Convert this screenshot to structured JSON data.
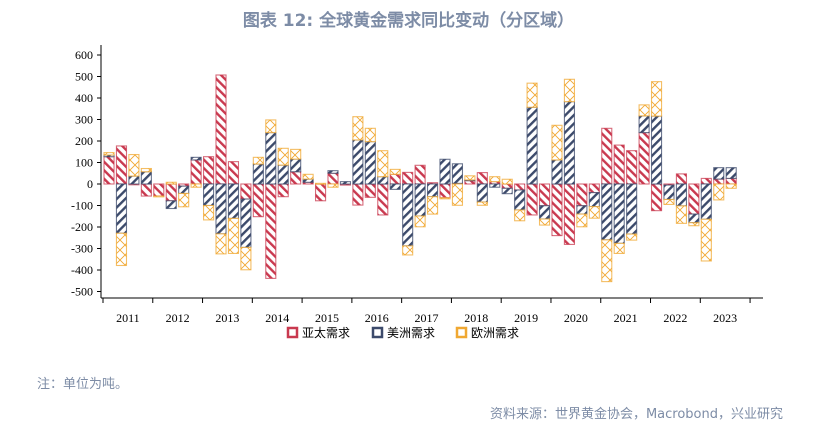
{
  "title": "图表 12: 全球黄金需求同比变动（分区域）",
  "note": "注：单位为吨。",
  "source": "资料来源：世界黄金协会，Macrobond，兴业研究",
  "chart_data": {
    "type": "bar",
    "stacked": true,
    "title": "图表 12: 全球黄金需求同比变动（分区域）",
    "xlabel": "",
    "ylabel": "",
    "ylim": [
      -500,
      600
    ],
    "yticks": [
      600,
      500,
      400,
      300,
      200,
      100,
      0,
      -100,
      -200,
      -300,
      -400,
      -500
    ],
    "year_labels": [
      "2011",
      "2012",
      "2013",
      "2014",
      "2015",
      "2016",
      "2017",
      "2018",
      "2019",
      "2020",
      "2021",
      "2022",
      "2023"
    ],
    "categories": [
      "2011Q1",
      "2011Q2",
      "2011Q3",
      "2011Q4",
      "2012Q1",
      "2012Q2",
      "2012Q3",
      "2012Q4",
      "2013Q1",
      "2013Q2",
      "2013Q3",
      "2013Q4",
      "2014Q1",
      "2014Q2",
      "2014Q3",
      "2014Q4",
      "2015Q1",
      "2015Q2",
      "2015Q3",
      "2015Q4",
      "2016Q1",
      "2016Q2",
      "2016Q3",
      "2016Q4",
      "2017Q1",
      "2017Q2",
      "2017Q3",
      "2017Q4",
      "2018Q1",
      "2018Q2",
      "2018Q3",
      "2018Q4",
      "2019Q1",
      "2019Q2",
      "2019Q3",
      "2019Q4",
      "2020Q1",
      "2020Q2",
      "2020Q3",
      "2020Q4",
      "2021Q1",
      "2021Q2",
      "2021Q3",
      "2021Q4",
      "2022Q1",
      "2022Q2",
      "2022Q3",
      "2022Q4",
      "2023Q1",
      "2023Q2",
      "2023Q3"
    ],
    "legend_position": "bottom",
    "grid": false,
    "series": [
      {
        "name": "亚太需求",
        "color": "#c9394f",
        "pattern": "diagonal-back",
        "values": [
          127,
          177,
          -3,
          -56,
          -56,
          -78,
          -10,
          112,
          127,
          507,
          104,
          -70,
          -152,
          -439,
          -59,
          57,
          8,
          -78,
          50,
          -5,
          -98,
          -62,
          -144,
          45,
          54,
          87,
          6,
          -64,
          3,
          16,
          53,
          11,
          -20,
          -28,
          -144,
          -101,
          -240,
          -281,
          -101,
          -40,
          259,
          181,
          155,
          239,
          -124,
          -5,
          47,
          -140,
          26,
          23,
          26
        ]
      },
      {
        "name": "美洲需求",
        "color": "#3c4a6b",
        "pattern": "diagonal-forward",
        "values": [
          8,
          -229,
          37,
          57,
          0,
          -36,
          -34,
          12,
          -100,
          -232,
          -160,
          -225,
          93,
          239,
          88,
          59,
          15,
          0,
          12,
          11,
          205,
          197,
          34,
          -25,
          -288,
          -149,
          -59,
          115,
          91,
          3,
          -84,
          -15,
          -25,
          -93,
          357,
          -62,
          112,
          383,
          -39,
          -65,
          -260,
          -276,
          -233,
          78,
          316,
          -67,
          -102,
          -40,
          -164,
          53,
          50
        ]
      },
      {
        "name": "欧洲需求",
        "color": "#f0a832",
        "pattern": "crosshatch",
        "values": [
          11,
          -150,
          100,
          15,
          -3,
          8,
          -62,
          -15,
          -67,
          -93,
          -163,
          -104,
          31,
          59,
          78,
          45,
          22,
          3,
          -15,
          0,
          108,
          62,
          121,
          23,
          -42,
          -50,
          -81,
          -5,
          -99,
          19,
          -15,
          23,
          22,
          -50,
          112,
          -28,
          161,
          104,
          -59,
          -54,
          -194,
          -47,
          -28,
          51,
          160,
          -23,
          -81,
          -14,
          -194,
          -74,
          -20
        ]
      }
    ]
  }
}
